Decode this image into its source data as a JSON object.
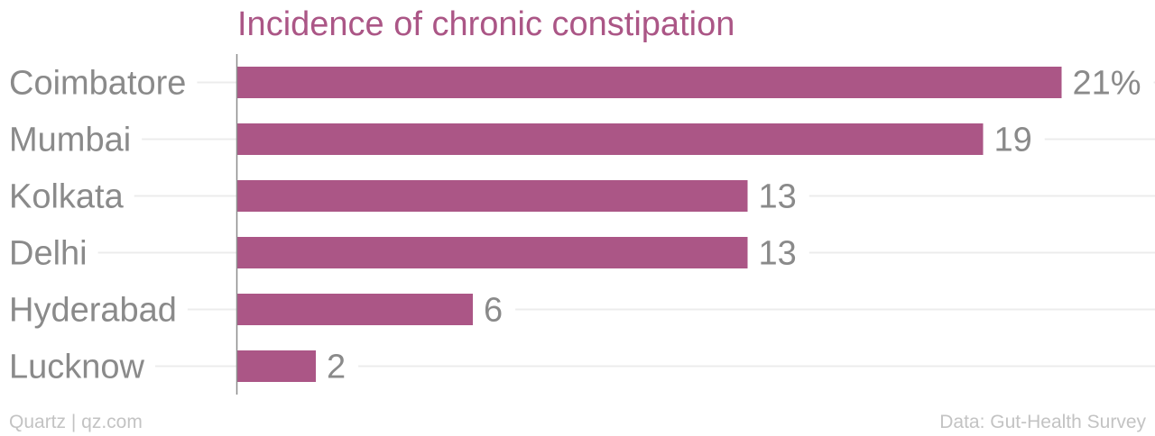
{
  "chart_data": {
    "type": "bar",
    "orientation": "horizontal",
    "title": "Incidence of chronic constipation",
    "categories": [
      "Coimbatore",
      "Mumbai",
      "Kolkata",
      "Delhi",
      "Hyderabad",
      "Lucknow"
    ],
    "values": [
      21,
      19,
      13,
      13,
      6,
      2
    ],
    "value_labels": [
      "21%",
      "19",
      "13",
      "13",
      "6",
      "2"
    ],
    "xlim": [
      0,
      24
    ],
    "grid": true,
    "legend": "none"
  },
  "footer": {
    "credit": "Quartz | qz.com",
    "source": "Data: Gut-Health Survey"
  },
  "colors": {
    "bar": "#ab5686",
    "title": "#ab5686",
    "label_text": "#8a8a8a",
    "grid": "#ececec",
    "axis": "#8c8c8c",
    "footer": "#c3c3c3"
  }
}
